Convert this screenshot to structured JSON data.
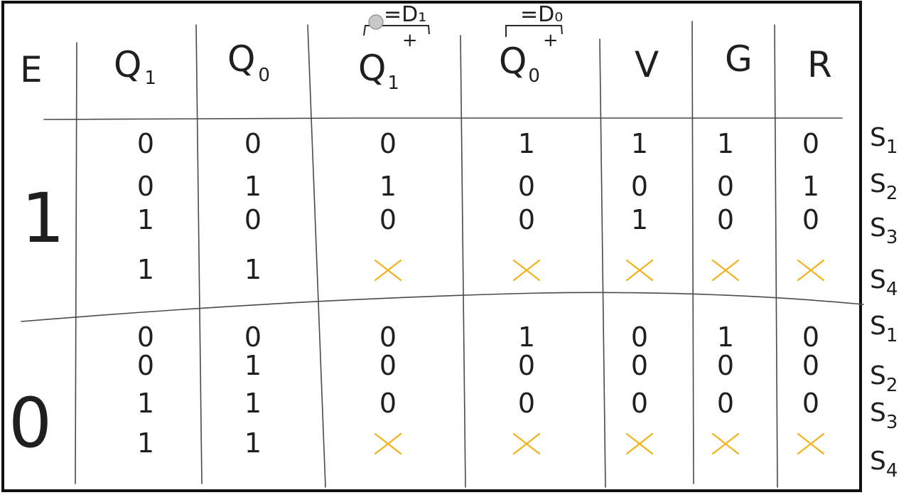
{
  "colors": {
    "ink": "#1f1f1f",
    "dont_care": "#f2b21b",
    "frame": "#111111",
    "cursor_dot": "#c9c9c9"
  },
  "headers": {
    "E": "E",
    "Q1": {
      "main": "Q",
      "sub": "1"
    },
    "Q0": {
      "main": "Q",
      "sub": "0"
    },
    "Q1plus": {
      "main": "Q",
      "sub": "1",
      "sup": "+",
      "annotation": "=D₁"
    },
    "Q0plus": {
      "main": "Q",
      "sub": "0",
      "sup": "+",
      "annotation": "=D₀"
    },
    "V": "V",
    "G": "G",
    "R": "R"
  },
  "groups": [
    {
      "E": "1",
      "rows": [
        {
          "Q1": "0",
          "Q0": "0",
          "Q1p": "0",
          "Q0p": "1",
          "V": "1",
          "G": "1",
          "R": "0",
          "state": "S1"
        },
        {
          "Q1": "0",
          "Q0": "1",
          "Q1p": "1",
          "Q0p": "0",
          "V": "0",
          "G": "0",
          "R": "1",
          "state": "S2"
        },
        {
          "Q1": "1",
          "Q0": "0",
          "Q1p": "0",
          "Q0p": "0",
          "V": "1",
          "G": "0",
          "R": "0",
          "state": "S3"
        },
        {
          "Q1": "1",
          "Q0": "1",
          "Q1p": "x",
          "Q0p": "x",
          "V": "x",
          "G": "x",
          "R": "x",
          "state": "S4"
        }
      ]
    },
    {
      "E": "0",
      "rows": [
        {
          "Q1": "0",
          "Q0": "0",
          "Q1p": "0",
          "Q0p": "1",
          "V": "0",
          "G": "1",
          "R": "0",
          "state": "S1"
        },
        {
          "Q1": "0",
          "Q0": "1",
          "Q1p": "0",
          "Q0p": "0",
          "V": "0",
          "G": "0",
          "R": "0",
          "state": "S2"
        },
        {
          "Q1": "1",
          "Q0": "1",
          "Q1p": "0",
          "Q0p": "0",
          "V": "0",
          "G": "0",
          "R": "0",
          "state": "S3"
        },
        {
          "Q1": "1",
          "Q0": "1",
          "Q1p": "x",
          "Q0p": "x",
          "V": "x",
          "G": "x",
          "R": "x",
          "state": "S4"
        }
      ]
    }
  ]
}
